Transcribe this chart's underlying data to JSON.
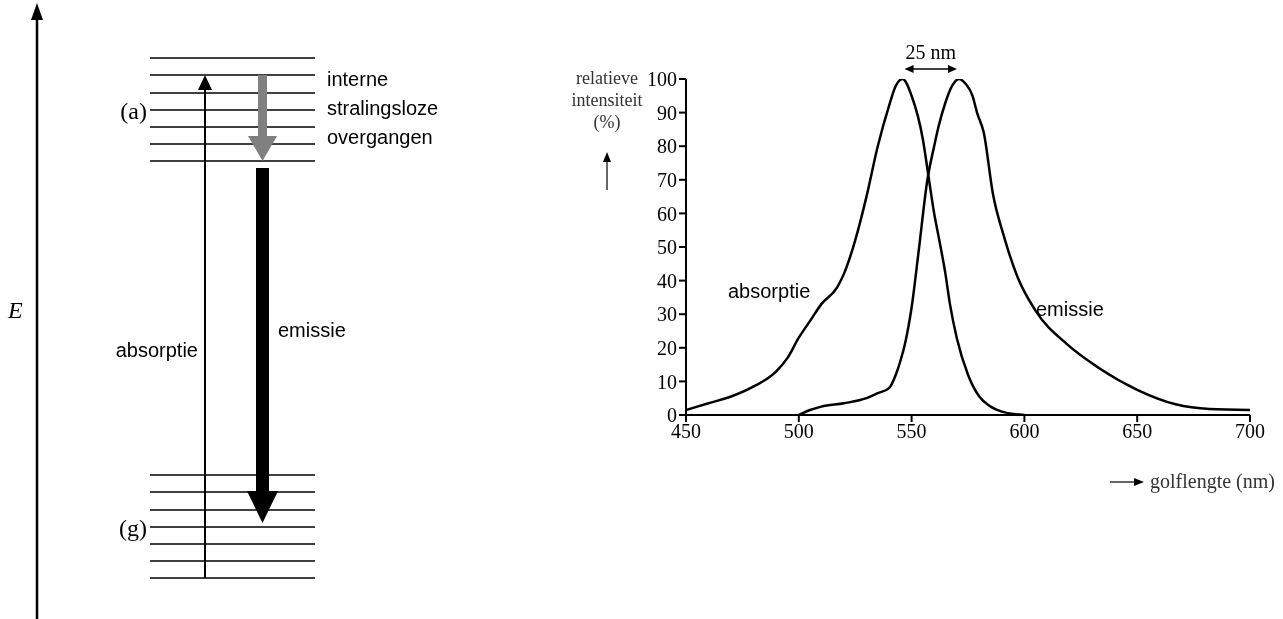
{
  "chart_data": [
    {
      "type": "other",
      "annotations": [
        "E",
        "(a)",
        "(g)",
        "absorptie",
        "emissie",
        "interne stralingsloze overgangen"
      ]
    },
    {
      "type": "line",
      "ylabel": "relatieve intensiteit (%)",
      "xlabel": "golflengte (nm)",
      "xlim": [
        450,
        700
      ],
      "xticks": [
        450,
        500,
        550,
        600,
        650,
        700
      ],
      "ylim": [
        0,
        100
      ],
      "yticks": [
        0,
        10,
        20,
        30,
        40,
        50,
        60,
        70,
        80,
        90,
        100
      ],
      "marker": "none",
      "line_style": "solid",
      "annotations": [
        "25 nm"
      ],
      "series": [
        {
          "name": "absorptie",
          "color": "#000000",
          "x": [
            450,
            460,
            470,
            480,
            490,
            495,
            500,
            505,
            510,
            517,
            520,
            525,
            530,
            535,
            540,
            543,
            546,
            550,
            555,
            557.5,
            560,
            562,
            565,
            567,
            570,
            575,
            580,
            585,
            590,
            595,
            600
          ],
          "values": [
            1.5,
            3.5,
            5.5,
            8.5,
            13,
            17,
            23,
            28,
            33,
            38,
            42,
            52,
            65,
            80,
            92,
            98,
            100,
            95,
            82,
            71,
            60,
            53,
            42,
            33,
            23,
            12,
            5.5,
            2.5,
            1,
            0.3,
            0
          ]
        },
        {
          "name": "emissie",
          "color": "#000000",
          "x": [
            500,
            505,
            510,
            520,
            530,
            535,
            540,
            543,
            545,
            547,
            550,
            553,
            557,
            560,
            562,
            565,
            568,
            571,
            574,
            577,
            579,
            582,
            586,
            591,
            597,
            605,
            619,
            633,
            650,
            667,
            682,
            700
          ],
          "values": [
            0,
            1.5,
            2.5,
            3.5,
            5,
            6.5,
            8,
            12,
            16,
            21,
            32,
            48,
            70,
            80,
            86,
            93,
            98,
            100,
            98.5,
            95,
            90,
            84,
            66,
            53,
            41,
            31,
            21,
            14,
            7.5,
            3.2,
            1.8,
            1.5
          ]
        }
      ]
    }
  ]
}
